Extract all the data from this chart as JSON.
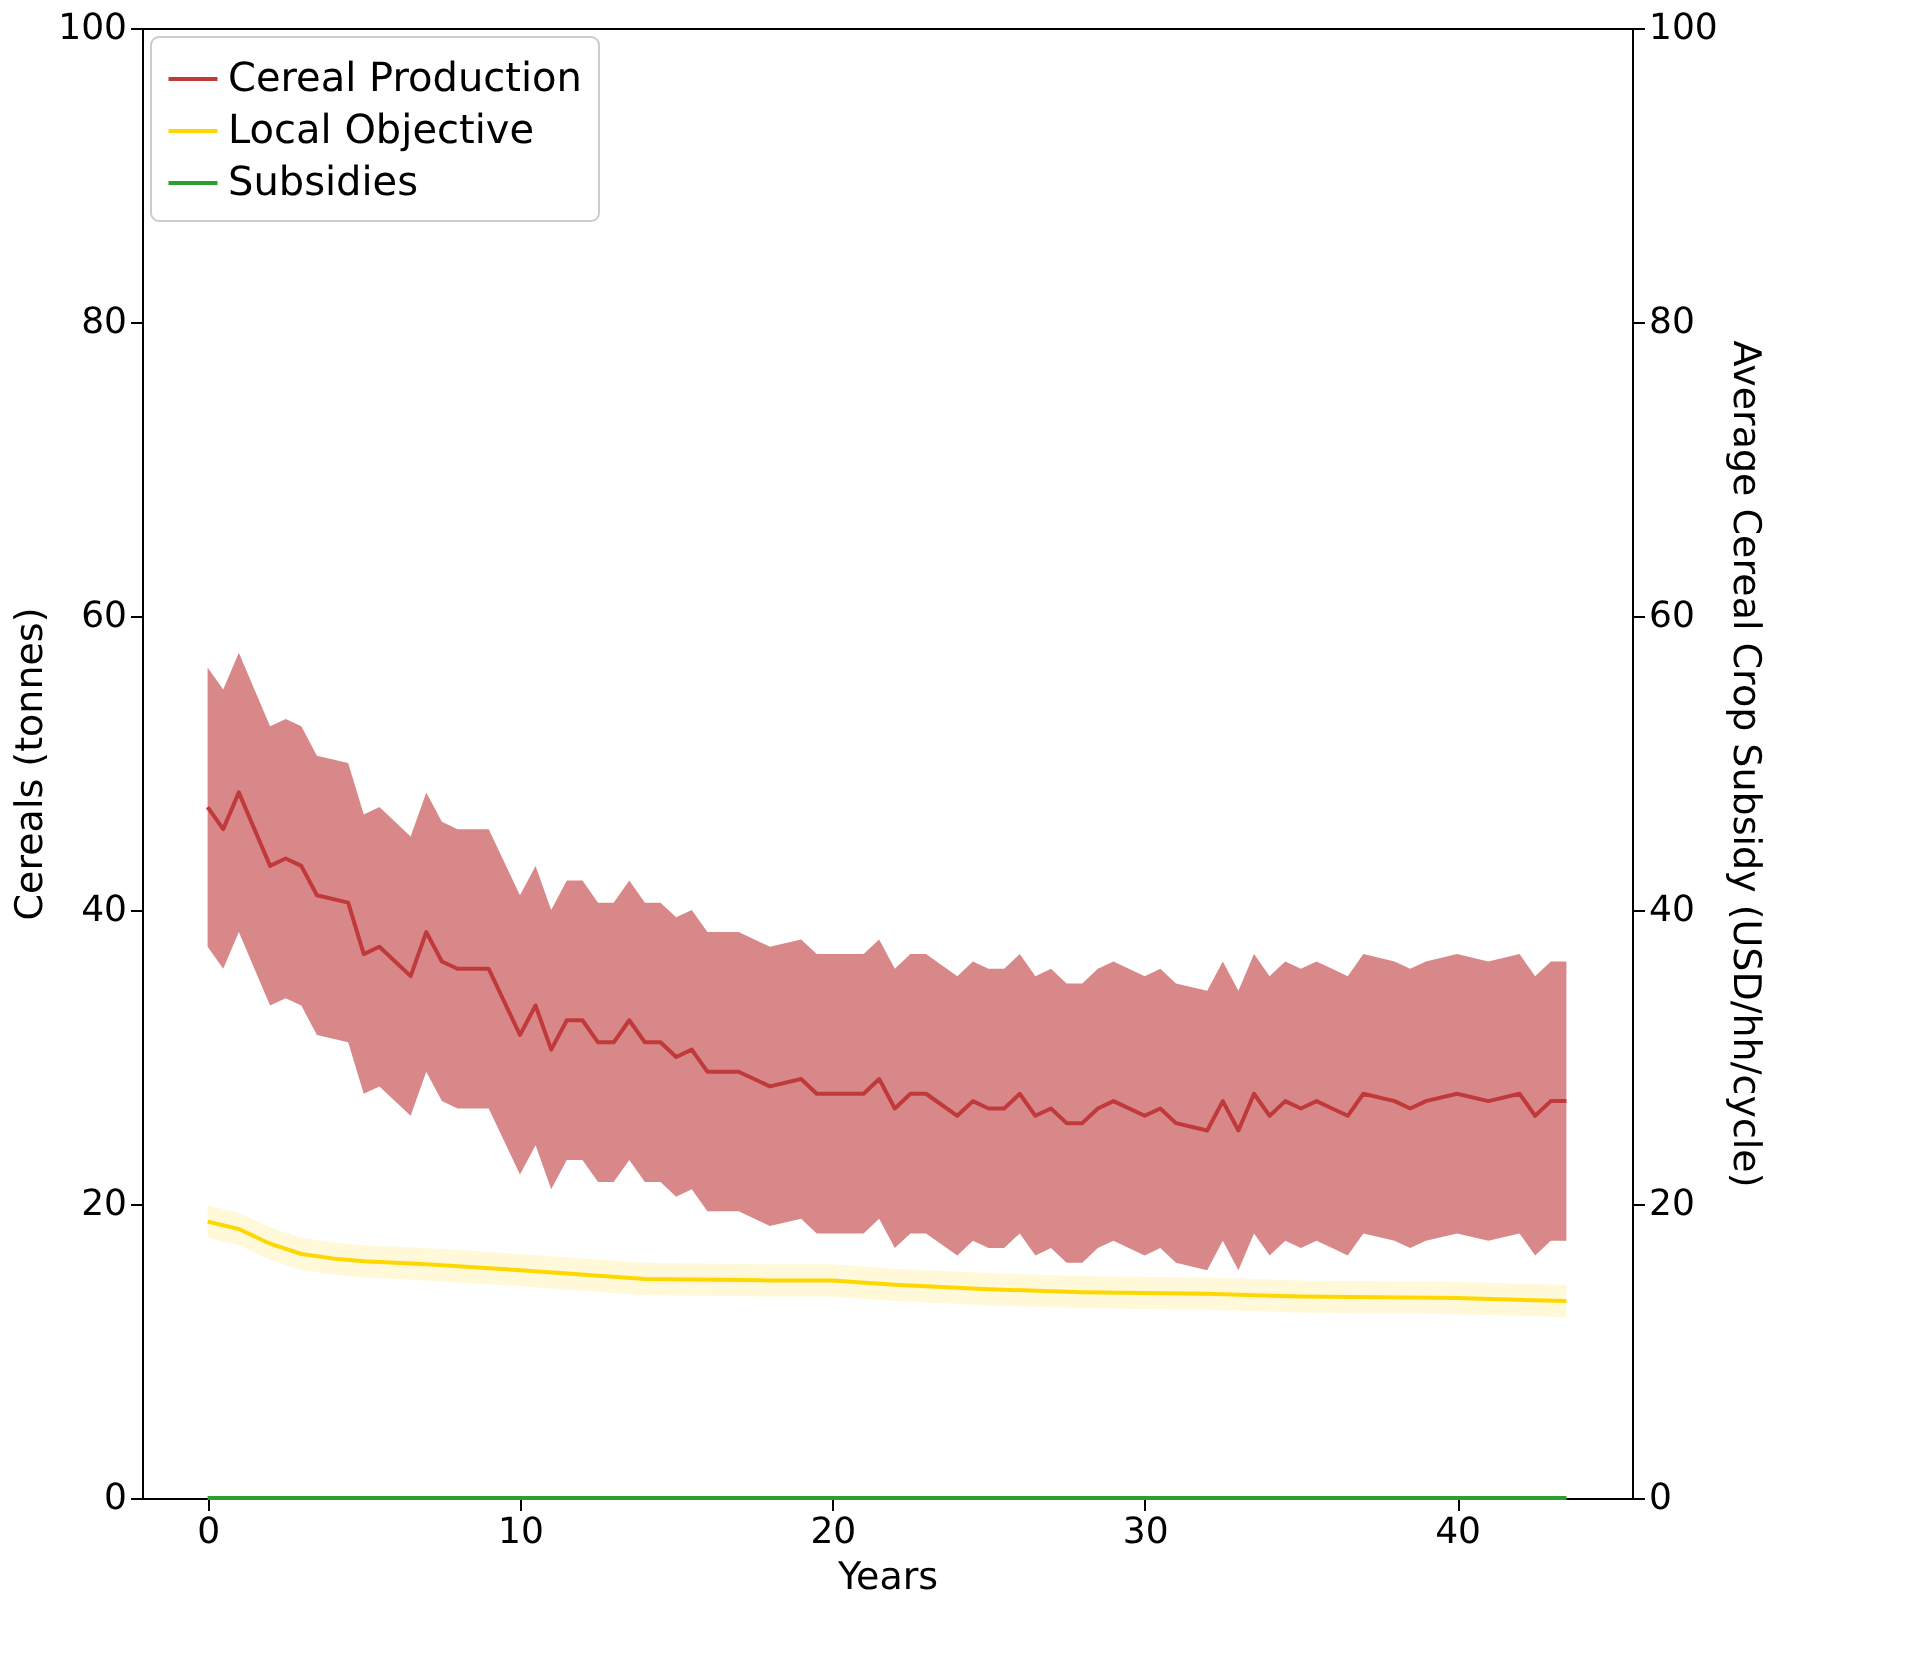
{
  "chart_data": {
    "type": "line",
    "xlabel": "Years",
    "ylabel": "Cereals (tonnes)",
    "y2label": "Average Cereal Crop Subsidy (USD/hh/cycle)",
    "xlim": [
      -2.1,
      45.6
    ],
    "xticks": [
      0,
      10,
      20,
      30,
      40
    ],
    "ylim": [
      0,
      100
    ],
    "yticks": [
      0,
      20,
      40,
      60,
      80,
      100
    ],
    "y2lim": [
      0,
      100
    ],
    "y2ticks": [
      0,
      20,
      40,
      60,
      80,
      100
    ],
    "grid": false,
    "legend": "top left",
    "marker": "none",
    "line_style": "solid",
    "series": [
      {
        "name": "Cereal Production",
        "color": "#c0393b",
        "x": [
          0,
          0.5,
          1,
          2,
          2.5,
          3,
          3.5,
          4.5,
          5,
          5.5,
          6.5,
          7,
          7.5,
          8,
          9,
          10,
          10.5,
          11,
          11.5,
          12,
          12.5,
          13,
          13.5,
          14,
          14.5,
          15,
          15.5,
          16,
          17,
          18,
          19,
          19.5,
          20,
          21,
          21.5,
          22,
          22.5,
          23,
          24,
          24.5,
          25,
          25.5,
          26,
          26.5,
          27,
          27.5,
          28,
          28.5,
          29,
          30,
          30.5,
          31,
          32,
          32.5,
          33,
          33.5,
          34,
          34.5,
          35,
          35.5,
          36,
          36.5,
          37,
          38,
          38.5,
          39,
          40,
          41,
          42,
          42.5,
          43,
          43.5
        ],
        "values": [
          47,
          45.5,
          48,
          43,
          43.5,
          43,
          41,
          40.5,
          37,
          37.5,
          35.5,
          38.5,
          36.5,
          36,
          36,
          31.5,
          33.5,
          30.5,
          32.5,
          32.5,
          31,
          31,
          32.5,
          31,
          31,
          30,
          30.5,
          29,
          29,
          28,
          28.5,
          27.5,
          27.5,
          27.5,
          28.5,
          26.5,
          27.5,
          27.5,
          26,
          27,
          26.5,
          26.5,
          27.5,
          26,
          26.5,
          25.5,
          25.5,
          26.5,
          27,
          26,
          26.5,
          25.5,
          25,
          27,
          25,
          27.5,
          26,
          27,
          26.5,
          27,
          26.5,
          26,
          27.5,
          27,
          26.5,
          27,
          27.5,
          27,
          27.5,
          26,
          27,
          27
        ],
        "upper": [
          56.5,
          55,
          57.5,
          52.5,
          53,
          52.5,
          50.5,
          50,
          46.5,
          47,
          45,
          48,
          46,
          45.5,
          45.5,
          41,
          43,
          40,
          42,
          42,
          40.5,
          40.5,
          42,
          40.5,
          40.5,
          39.5,
          40,
          38.5,
          38.5,
          37.5,
          38,
          37,
          37,
          37,
          38,
          36,
          37,
          37,
          35.5,
          36.5,
          36,
          36,
          37,
          35.5,
          36,
          35,
          35,
          36,
          36.5,
          35.5,
          36,
          35,
          34.5,
          36.5,
          34.5,
          37,
          35.5,
          36.5,
          36,
          36.5,
          36,
          35.5,
          37,
          36.5,
          36,
          36.5,
          37,
          36.5,
          37,
          35.5,
          36.5,
          36.5
        ],
        "lower": [
          37.5,
          36,
          38.5,
          33.5,
          34,
          33.5,
          31.5,
          31,
          27.5,
          28,
          26,
          29,
          27,
          26.5,
          26.5,
          22,
          24,
          21,
          23,
          23,
          21.5,
          21.5,
          23,
          21.5,
          21.5,
          20.5,
          21,
          19.5,
          19.5,
          18.5,
          19,
          18,
          18,
          18,
          19,
          17,
          18,
          18,
          16.5,
          17.5,
          17,
          17,
          18,
          16.5,
          17,
          16,
          16,
          17,
          17.5,
          16.5,
          17,
          16,
          15.5,
          17.5,
          15.5,
          18,
          16.5,
          17.5,
          17,
          17.5,
          17,
          16.5,
          18,
          17.5,
          17,
          17.5,
          18,
          17.5,
          18,
          16.5,
          17.5,
          17.5
        ]
      },
      {
        "name": "Local Objective",
        "color": "#ffd700",
        "x": [
          0,
          1,
          2,
          3,
          4,
          5,
          7,
          10,
          14,
          18,
          20,
          22,
          25,
          28,
          32,
          35,
          40,
          43.5
        ],
        "values": [
          18.8,
          18.3,
          17.3,
          16.6,
          16.3,
          16.1,
          15.9,
          15.5,
          14.9,
          14.8,
          14.8,
          14.5,
          14.2,
          14,
          13.9,
          13.7,
          13.6,
          13.4
        ],
        "upper": [
          19.9,
          19.4,
          18.4,
          17.7,
          17.4,
          17.2,
          17,
          16.6,
          16,
          15.9,
          15.9,
          15.6,
          15.3,
          15.1,
          15,
          14.8,
          14.7,
          14.5
        ],
        "lower": [
          17.7,
          17.2,
          16.2,
          15.5,
          15.2,
          15,
          14.8,
          14.4,
          13.8,
          13.7,
          13.7,
          13.4,
          13.1,
          12.9,
          12.8,
          12.6,
          12.5,
          12.3
        ]
      },
      {
        "name": "Subsidies",
        "color": "#2ca02c",
        "axis": "y2",
        "x": [
          0,
          43.5
        ],
        "values": [
          0,
          0
        ]
      }
    ]
  }
}
